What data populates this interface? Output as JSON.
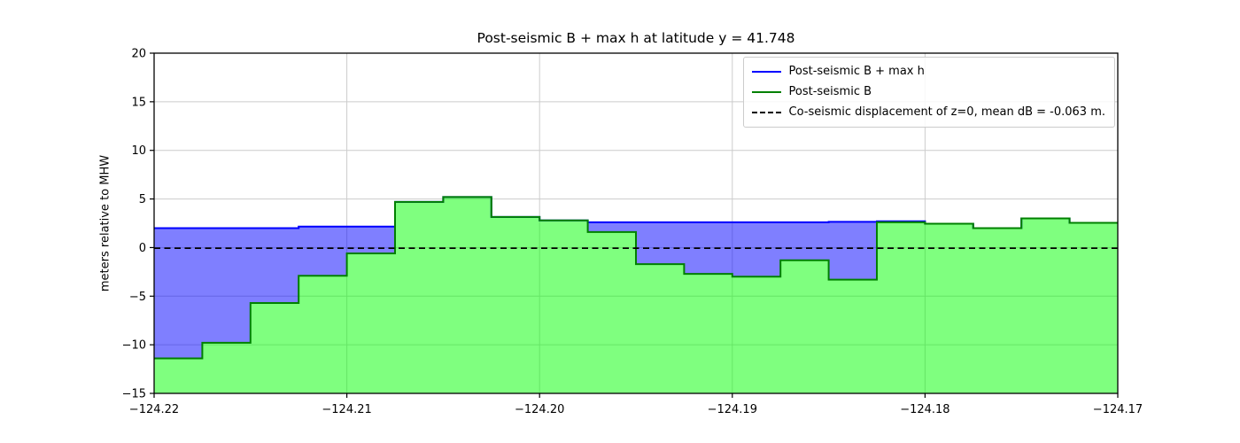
{
  "window": {
    "background": "#ffffff"
  },
  "chart_data": {
    "type": "area",
    "title": "Post-seismic B + max h at latitude y = 41.748",
    "xlabel": "",
    "ylabel": "meters relative to MHW",
    "xlim": [
      -124.22,
      -124.17
    ],
    "ylim": [
      -15,
      20
    ],
    "xticks": [
      -124.22,
      -124.21,
      -124.2,
      -124.19,
      -124.18,
      -124.17
    ],
    "xtick_labels": [
      "−124.22",
      "−124.21",
      "−124.20",
      "−124.19",
      "−124.18",
      "−124.17"
    ],
    "yticks": [
      -15,
      -10,
      -5,
      0,
      5,
      10,
      15,
      20
    ],
    "ytick_labels": [
      "−15",
      "−10",
      "−5",
      "0",
      "5",
      "10",
      "15",
      "20"
    ],
    "grid": true,
    "grid_color": "#cccccc",
    "axis_color": "#000000",
    "legend_position": "upper right",
    "cell_edges_longitude": [
      -124.22,
      -124.2175,
      -124.215,
      -124.2125,
      -124.21,
      -124.2075,
      -124.205,
      -124.2025,
      -124.2,
      -124.1975,
      -124.195,
      -124.1925,
      -124.19,
      -124.1875,
      -124.185,
      -124.1825,
      -124.18,
      -124.1775,
      -124.175,
      -124.1725,
      -124.17
    ],
    "series": [
      {
        "name": "Post-seismic B + max h",
        "type": "step-fill",
        "color": "#0000ff",
        "fill": "rgba(0,0,255,0.5)",
        "values": [
          2.0,
          2.0,
          2.0,
          2.15,
          2.15,
          4.7,
          5.2,
          3.15,
          2.8,
          2.6,
          2.6,
          2.6,
          2.6,
          2.6,
          2.65,
          2.7,
          2.45,
          2.0,
          3.0,
          2.55
        ]
      },
      {
        "name": "Post-seismic B",
        "type": "step-fill",
        "color": "#008000",
        "fill": "rgba(0,255,0,0.5)",
        "values": [
          -11.4,
          -9.8,
          -5.7,
          -2.9,
          -0.6,
          4.7,
          5.2,
          3.15,
          2.8,
          1.6,
          -1.7,
          -2.7,
          -3.0,
          -1.3,
          -3.3,
          2.6,
          2.45,
          2.0,
          3.0,
          2.55
        ]
      },
      {
        "name": "Co-seismic displacement of z=0, mean dB = -0.063 m.",
        "type": "hline",
        "style": "dashed",
        "color": "#000000",
        "value": -0.063
      }
    ]
  }
}
